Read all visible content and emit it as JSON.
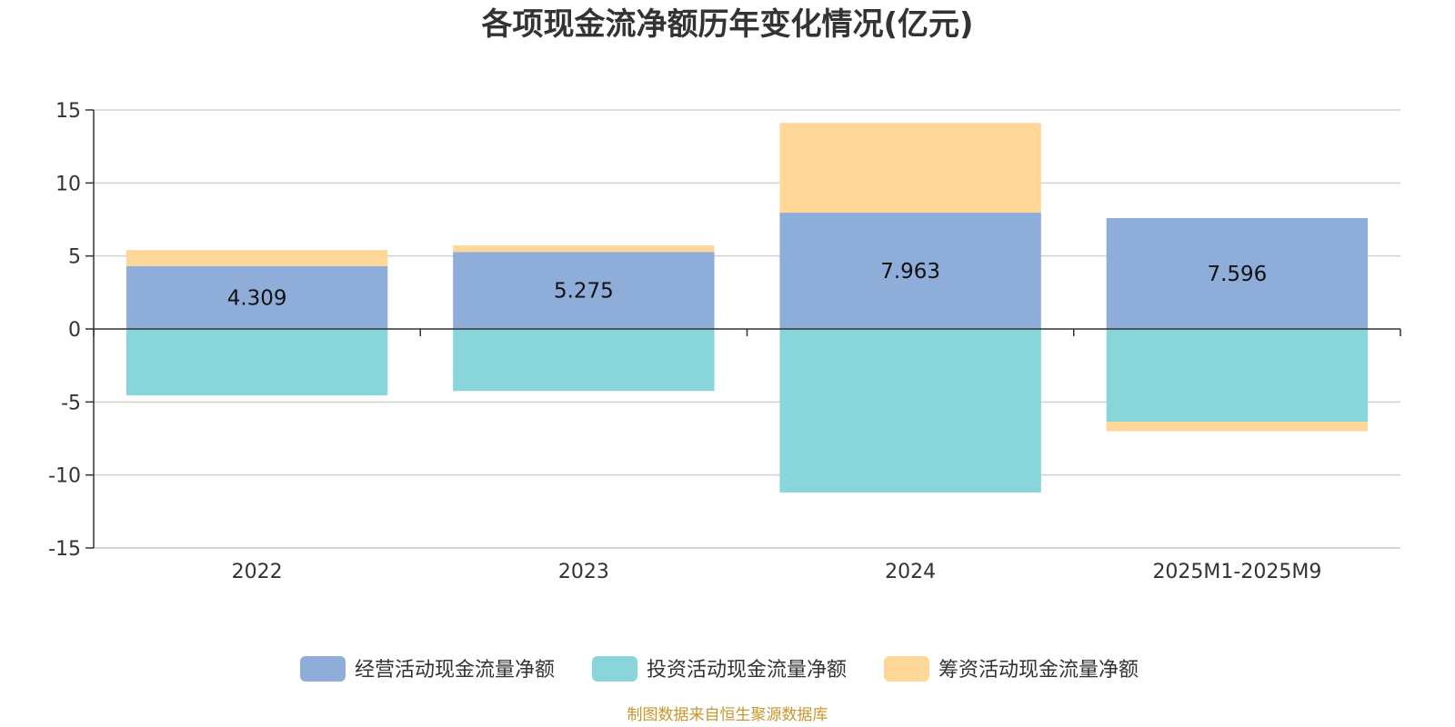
{
  "chart_data": {
    "type": "bar",
    "stacked": true,
    "title": "各项现金流净额历年变化情况(亿元)",
    "xlabel": "",
    "ylabel": "",
    "categories": [
      "2022",
      "2023",
      "2024",
      "2025M1-2025M9"
    ],
    "ylim": [
      -15,
      15
    ],
    "yticks": [
      15,
      10,
      5,
      0,
      -5,
      -10,
      -15
    ],
    "grid": true,
    "legend_position": "bottom",
    "series": [
      {
        "name": "经营活动现金流量净额",
        "color": "#8eadd9",
        "values": [
          4.309,
          5.275,
          7.963,
          7.596
        ],
        "show_labels": true
      },
      {
        "name": "投资活动现金流量净额",
        "color": "#88d6d9",
        "values": [
          -4.55,
          -4.25,
          -11.2,
          -6.35
        ],
        "show_labels": false
      },
      {
        "name": "筹资活动现金流量净额",
        "color": "#ffd899",
        "values": [
          1.1,
          0.45,
          6.15,
          -0.65
        ],
        "show_labels": false
      }
    ],
    "source": "制图数据来自恒生聚源数据库"
  }
}
